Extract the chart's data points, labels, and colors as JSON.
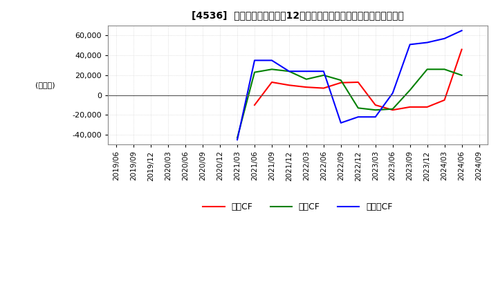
{
  "title": "[4536]  キャッシュフローの12か月移動合計の対前年同期増減額の推移",
  "ylabel": "(百万円)",
  "ylim": [
    -50000,
    70000
  ],
  "yticks": [
    -40000,
    -20000,
    0,
    20000,
    40000,
    60000
  ],
  "legend_labels": [
    "営業CF",
    "投資CF",
    "フリーCF"
  ],
  "line_colors": [
    "#ff0000",
    "#008000",
    "#0000ff"
  ],
  "dates": [
    "2019/06",
    "2019/09",
    "2019/12",
    "2020/03",
    "2020/06",
    "2020/09",
    "2020/12",
    "2021/03",
    "2021/06",
    "2021/09",
    "2021/12",
    "2022/03",
    "2022/06",
    "2022/09",
    "2022/12",
    "2023/03",
    "2023/06",
    "2023/09",
    "2023/12",
    "2024/03",
    "2024/06",
    "2024/09"
  ],
  "営業CF": [
    null,
    null,
    null,
    null,
    null,
    null,
    null,
    null,
    -10000,
    13000,
    10000,
    8000,
    7000,
    12500,
    13000,
    -10000,
    -15000,
    -12000,
    -12000,
    -5000,
    46000,
    null
  ],
  "投資CF": [
    null,
    null,
    null,
    null,
    null,
    null,
    null,
    -43000,
    23000,
    26000,
    24000,
    16000,
    20000,
    15000,
    -13000,
    -15000,
    -14000,
    5000,
    26000,
    26000,
    20000,
    null
  ],
  "フリーCF": [
    null,
    null,
    null,
    null,
    null,
    null,
    null,
    -45000,
    35000,
    35000,
    24000,
    24000,
    24000,
    -28000,
    -22000,
    -22000,
    2000,
    51000,
    53000,
    57000,
    65000,
    null
  ]
}
